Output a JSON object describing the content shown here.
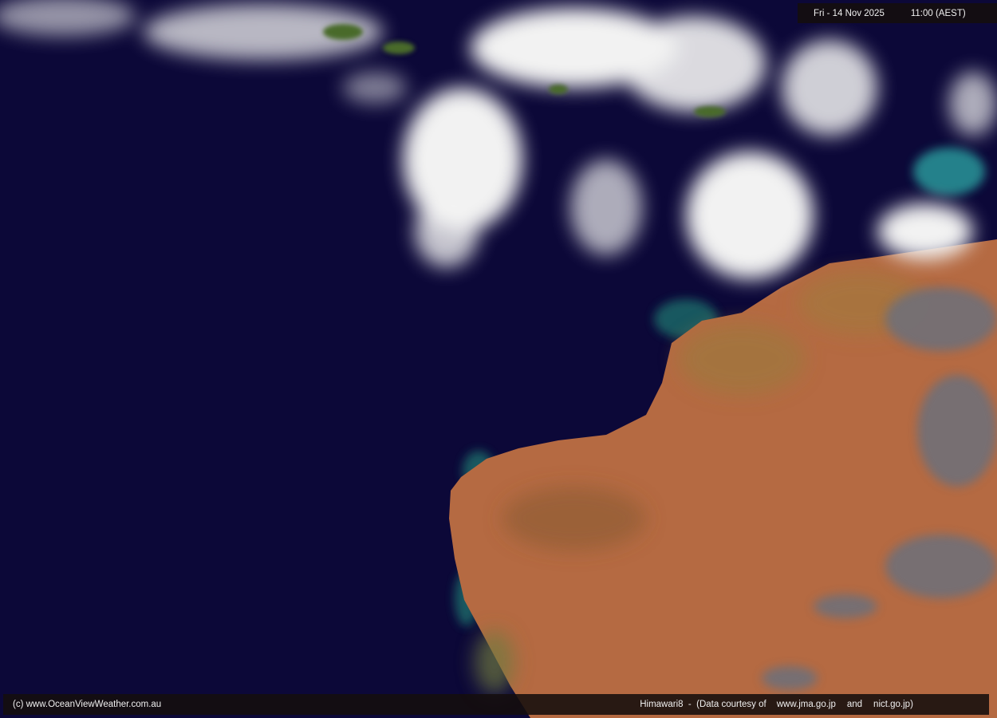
{
  "header": {
    "date": "Fri - 14 Nov 2025",
    "time": "11:00 (AEST)"
  },
  "footer": {
    "copyright": "(c) www.OceanViewWeather.com.au",
    "satellite": "Himawari8  -  (Data courtesy of",
    "source1": "www.jma.go.jp",
    "conjunction": "and",
    "source2": "nict.go.jp)"
  },
  "colors": {
    "ocean": "#0c0838",
    "land": "#b86a40",
    "cloud": "#f2f2f2",
    "shallow_water": "#1e7a78"
  }
}
